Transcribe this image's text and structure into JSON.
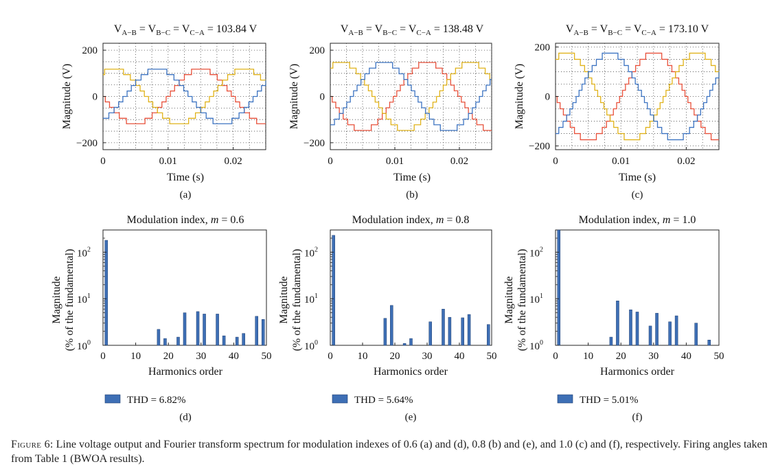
{
  "colors": {
    "series_a": "#e8503a",
    "series_b": "#e0b21a",
    "series_c": "#3c73c1",
    "bar": "#3e6fb5",
    "grid": "#444444"
  },
  "chart_data": [
    {
      "id": "a",
      "type": "line",
      "panel_label": "(a)",
      "title": "V_{A−B} = V_{B−C} = V_{C−A} = 103.84 V",
      "title_parts": [
        "V",
        "A−B",
        " = V",
        "B−C",
        " = V",
        "C−A",
        " = 103.84 V"
      ],
      "xlabel": "Time (s)",
      "ylabel": "Magnitude (V)",
      "xlim": [
        0,
        0.025
      ],
      "ylim": [
        -230,
        230
      ],
      "xticks": [
        0,
        0.01,
        0.02
      ],
      "xtick_labels": [
        "0",
        "0.01",
        "0.02"
      ],
      "yticks": [
        -200,
        0,
        200
      ],
      "ytick_labels": [
        "−200",
        "0",
        "200"
      ],
      "frequency_hz": 50,
      "grid": true,
      "series": [
        {
          "name": "V_A-B",
          "amplitude": 118,
          "phase_deg": 180,
          "levels": 5,
          "color_key": "series_a"
        },
        {
          "name": "V_B-C",
          "amplitude": 118,
          "phase_deg": 60,
          "levels": 5,
          "color_key": "series_b"
        },
        {
          "name": "V_C-A",
          "amplitude": 118,
          "phase_deg": -60,
          "levels": 5,
          "color_key": "series_c"
        }
      ]
    },
    {
      "id": "b",
      "type": "line",
      "panel_label": "(b)",
      "title": "V_{A−B} = V_{B−C} = V_{C−A} = 138.48 V",
      "title_parts": [
        "V",
        "A−B",
        " = V",
        "B−C",
        " = V",
        "C−A",
        " = 138.48 V"
      ],
      "xlabel": "Time (s)",
      "ylabel": "Magnitude (V)",
      "xlim": [
        0,
        0.025
      ],
      "ylim": [
        -230,
        230
      ],
      "xticks": [
        0,
        0.01,
        0.02
      ],
      "xtick_labels": [
        "0",
        "0.01",
        "0.02"
      ],
      "yticks": [
        -200,
        0,
        200
      ],
      "ytick_labels": [
        "−200",
        "0",
        "200"
      ],
      "frequency_hz": 50,
      "grid": true,
      "series": [
        {
          "name": "V_A-B",
          "amplitude": 147,
          "phase_deg": 180,
          "levels": 6,
          "color_key": "series_a"
        },
        {
          "name": "V_B-C",
          "amplitude": 147,
          "phase_deg": 60,
          "levels": 6,
          "color_key": "series_b"
        },
        {
          "name": "V_C-A",
          "amplitude": 147,
          "phase_deg": -60,
          "levels": 6,
          "color_key": "series_c"
        }
      ]
    },
    {
      "id": "c",
      "type": "line",
      "panel_label": "(c)",
      "title": "V_{A−B} = V_{B−C} = V_{C−A} = 173.10 V",
      "title_parts": [
        "V",
        "A−B",
        " = V",
        "B−C",
        " = V",
        "C−A",
        " = 173.10 V"
      ],
      "xlabel": "Time (s)",
      "ylabel": "Magnitude (V)",
      "xlim": [
        0,
        0.025
      ],
      "ylim": [
        -215,
        215
      ],
      "xticks": [
        0,
        0.01,
        0.02
      ],
      "xtick_labels": [
        "0",
        "0.01",
        "0.02"
      ],
      "yticks": [
        -200,
        0,
        200
      ],
      "ytick_labels": [
        "−200",
        "0",
        "200"
      ],
      "frequency_hz": 50,
      "grid": true,
      "series": [
        {
          "name": "V_A-B",
          "amplitude": 175,
          "phase_deg": 180,
          "levels": 7,
          "color_key": "series_a"
        },
        {
          "name": "V_B-C",
          "amplitude": 175,
          "phase_deg": 60,
          "levels": 7,
          "color_key": "series_b"
        },
        {
          "name": "V_C-A",
          "amplitude": 175,
          "phase_deg": -60,
          "levels": 7,
          "color_key": "series_c"
        }
      ]
    },
    {
      "id": "d",
      "type": "bar",
      "panel_label": "(d)",
      "title_prefix": "Modulation index, ",
      "title_var": "m",
      "title_suffix": " = 0.6",
      "xlabel": "Harmonics order",
      "ylabel_line1": "Magnitude",
      "ylabel_line2": "(% of the fundamental)",
      "yscale": "log",
      "ylim": [
        1,
        300
      ],
      "xlim": [
        0,
        50
      ],
      "xticks": [
        0,
        10,
        20,
        30,
        40,
        50
      ],
      "xtick_labels": [
        "0",
        "10",
        "20",
        "30",
        "40",
        "50"
      ],
      "yticks": [
        1,
        10,
        100
      ],
      "ytick_base": "10",
      "ytick_exps": [
        "0",
        "1",
        "2"
      ],
      "legend": "THD = 6.82%",
      "harmonics": [
        1,
        17,
        19,
        23,
        25,
        29,
        31,
        35,
        37,
        41,
        43,
        47,
        49
      ],
      "values": [
        180,
        2.2,
        1.4,
        1.5,
        5.0,
        5.3,
        4.7,
        4.7,
        1.6,
        1.5,
        1.8,
        4.2,
        3.6
      ]
    },
    {
      "id": "e",
      "type": "bar",
      "panel_label": "(e)",
      "title_prefix": "Modulation index, ",
      "title_var": "m",
      "title_suffix": " = 0.8",
      "xlabel": "Harmonics order",
      "ylabel_line1": "Magnitude",
      "ylabel_line2": "(% of the fundamental)",
      "yscale": "log",
      "ylim": [
        1,
        300
      ],
      "xlim": [
        0,
        50
      ],
      "xticks": [
        0,
        10,
        20,
        30,
        40,
        50
      ],
      "xtick_labels": [
        "0",
        "10",
        "20",
        "30",
        "40",
        "50"
      ],
      "yticks": [
        1,
        10,
        100
      ],
      "ytick_base": "10",
      "ytick_exps": [
        "0",
        "1",
        "2"
      ],
      "legend": "THD = 5.64%",
      "harmonics": [
        1,
        17,
        19,
        23,
        25,
        31,
        35,
        37,
        41,
        43,
        49
      ],
      "values": [
        230,
        3.8,
        7.2,
        1.1,
        1.4,
        3.2,
        6.0,
        4.0,
        3.9,
        4.6,
        2.8
      ]
    },
    {
      "id": "f",
      "type": "bar",
      "panel_label": "(f)",
      "title_prefix": "Modulation index, ",
      "title_var": "m",
      "title_suffix": " = 1.0",
      "xlabel": "Harmonics order",
      "ylabel_line1": "Magnitude",
      "ylabel_line2": "(% of the fundamental)",
      "yscale": "log",
      "ylim": [
        1,
        300
      ],
      "xlim": [
        0,
        50
      ],
      "xticks": [
        0,
        10,
        20,
        30,
        40,
        50
      ],
      "xtick_labels": [
        "0",
        "10",
        "20",
        "30",
        "40",
        "50"
      ],
      "yticks": [
        1,
        10,
        100
      ],
      "ytick_base": "10",
      "ytick_exps": [
        "0",
        "1",
        "2"
      ],
      "legend": "THD = 5.01%",
      "harmonics": [
        1,
        17,
        19,
        23,
        25,
        29,
        31,
        35,
        37,
        43,
        47
      ],
      "values": [
        300,
        1.5,
        9.0,
        5.8,
        5.2,
        2.6,
        4.9,
        3.2,
        4.3,
        3.0,
        1.3
      ]
    }
  ],
  "caption": {
    "label": "Figure 6:",
    "text": " Line voltage output and Fourier transform spectrum for modulation indexes of 0.6 (a) and (d), 0.8 (b) and (e), and 1.0 (c) and (f), respectively. Firing angles taken from Table 1 (BWOA results)."
  }
}
